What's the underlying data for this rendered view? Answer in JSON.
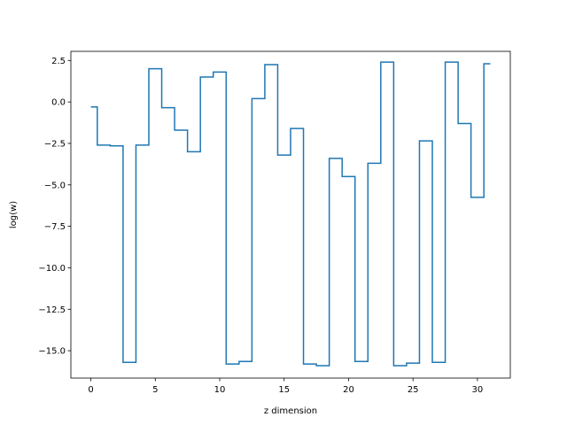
{
  "chart_data": {
    "type": "line",
    "drawstyle": "steps-mid",
    "xlabel": "z dimension",
    "ylabel": "log(w)",
    "xlim": [
      -1.55,
      32.55
    ],
    "ylim": [
      -16.65,
      3.05
    ],
    "xticks": [
      0,
      5,
      10,
      15,
      20,
      25,
      30
    ],
    "xtick_labels": [
      "0",
      "5",
      "10",
      "15",
      "20",
      "25",
      "30"
    ],
    "yticks": [
      2.5,
      0.0,
      -2.5,
      -5.0,
      -7.5,
      -10.0,
      -12.5,
      -15.0
    ],
    "ytick_labels": [
      "2.5",
      "0.0",
      "−2.5",
      "−5.0",
      "−7.5",
      "−10.0",
      "−12.5",
      "−15.0"
    ],
    "grid": false,
    "series": [
      {
        "color": "#1f77b4",
        "x": [
          0,
          1,
          2,
          3,
          4,
          5,
          6,
          7,
          8,
          9,
          10,
          11,
          12,
          13,
          14,
          15,
          16,
          17,
          18,
          19,
          20,
          21,
          22,
          23,
          24,
          25,
          26,
          27,
          28,
          29,
          30,
          31
        ],
        "y": [
          -0.3,
          -2.6,
          -2.65,
          -15.7,
          -2.6,
          2.0,
          -0.35,
          -1.7,
          -3.0,
          1.5,
          1.8,
          -15.8,
          -15.65,
          0.2,
          2.25,
          -3.2,
          -1.6,
          -15.8,
          -15.9,
          -3.4,
          -4.5,
          -15.65,
          -3.7,
          2.4,
          -15.9,
          -15.75,
          -2.35,
          -15.7,
          2.4,
          -1.3,
          -5.75,
          2.3
        ]
      }
    ]
  }
}
